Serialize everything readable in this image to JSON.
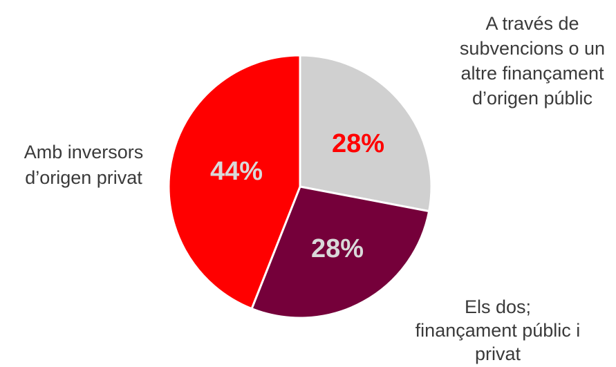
{
  "chart_data": {
    "type": "pie",
    "title": "",
    "slices": [
      {
        "label_lines": [
          "A través de",
          "subvencions o un",
          "altre finançament",
          "d’origen públic"
        ],
        "value": 28,
        "value_label": "28%",
        "color": "#d0d0d0",
        "value_label_color": "#ff0000"
      },
      {
        "label_lines": [
          "Els dos;",
          "finançament públic i",
          "privat"
        ],
        "value": 28,
        "value_label": "28%",
        "color": "#75003a",
        "value_label_color": "#d9d9d9"
      },
      {
        "label_lines": [
          "Amb inversors",
          "d’origen privat"
        ],
        "value": 44,
        "value_label": "44%",
        "color": "#ff0000",
        "value_label_color": "#d9d9d9"
      }
    ]
  }
}
